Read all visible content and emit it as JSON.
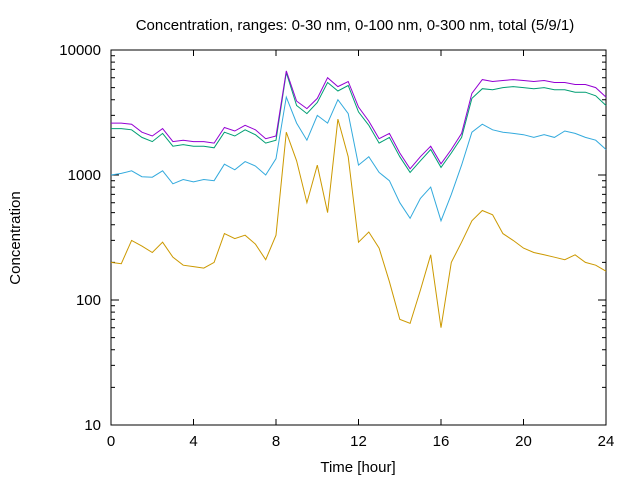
{
  "chart_data": {
    "type": "line",
    "title": "Concentration, ranges: 0-30 nm, 0-100 nm, 0-300 nm, total (5/9/1)",
    "xlabel": "Time [hour]",
    "ylabel": "Concentration",
    "xlim": [
      0,
      24
    ],
    "ylim": [
      10,
      10000
    ],
    "yscale": "log",
    "grid": false,
    "legend": "none",
    "x_ticks": [
      "0",
      "4",
      "8",
      "12",
      "16",
      "20",
      "24"
    ],
    "y_ticks": [
      "10",
      "100",
      "1000",
      "10000"
    ],
    "series": [
      {
        "color": "#cc9900",
        "points": [
          [
            0,
            200
          ],
          [
            0.5,
            195
          ],
          [
            1,
            300
          ],
          [
            1.5,
            270
          ],
          [
            2,
            240
          ],
          [
            2.5,
            290
          ],
          [
            3,
            220
          ],
          [
            3.5,
            190
          ],
          [
            4,
            185
          ],
          [
            4.5,
            180
          ],
          [
            5,
            200
          ],
          [
            5.5,
            340
          ],
          [
            6,
            310
          ],
          [
            6.5,
            330
          ],
          [
            7,
            280
          ],
          [
            7.5,
            210
          ],
          [
            8,
            330
          ],
          [
            8.5,
            2200
          ],
          [
            9,
            1300
          ],
          [
            9.5,
            600
          ],
          [
            10,
            1200
          ],
          [
            10.5,
            500
          ],
          [
            11,
            2800
          ],
          [
            11.5,
            1400
          ],
          [
            12,
            290
          ],
          [
            12.5,
            350
          ],
          [
            13,
            260
          ],
          [
            13.5,
            140
          ],
          [
            14,
            70
          ],
          [
            14.5,
            65
          ],
          [
            15,
            120
          ],
          [
            15.5,
            230
          ],
          [
            16,
            60
          ],
          [
            16.5,
            200
          ],
          [
            17,
            290
          ],
          [
            17.5,
            430
          ],
          [
            18,
            520
          ],
          [
            18.5,
            480
          ],
          [
            19,
            340
          ],
          [
            19.5,
            300
          ],
          [
            20,
            260
          ],
          [
            20.5,
            240
          ],
          [
            21,
            230
          ],
          [
            21.5,
            220
          ],
          [
            22,
            210
          ],
          [
            22.5,
            230
          ],
          [
            23,
            200
          ],
          [
            23.5,
            190
          ],
          [
            24,
            170
          ]
        ]
      },
      {
        "color": "#33aadd",
        "points": [
          [
            0,
            1000
          ],
          [
            0.5,
            1030
          ],
          [
            1,
            1080
          ],
          [
            1.5,
            970
          ],
          [
            2,
            960
          ],
          [
            2.5,
            1080
          ],
          [
            3,
            850
          ],
          [
            3.5,
            920
          ],
          [
            4,
            880
          ],
          [
            4.5,
            920
          ],
          [
            5,
            900
          ],
          [
            5.5,
            1220
          ],
          [
            6,
            1100
          ],
          [
            6.5,
            1280
          ],
          [
            7,
            1180
          ],
          [
            7.5,
            1000
          ],
          [
            8,
            1350
          ],
          [
            8.5,
            4200
          ],
          [
            9,
            2600
          ],
          [
            9.5,
            1900
          ],
          [
            10,
            3000
          ],
          [
            10.5,
            2600
          ],
          [
            11,
            4000
          ],
          [
            11.5,
            3100
          ],
          [
            12,
            1200
          ],
          [
            12.5,
            1400
          ],
          [
            13,
            1050
          ],
          [
            13.5,
            900
          ],
          [
            14,
            600
          ],
          [
            14.5,
            450
          ],
          [
            15,
            650
          ],
          [
            15.5,
            800
          ],
          [
            16,
            430
          ],
          [
            16.5,
            700
          ],
          [
            17,
            1200
          ],
          [
            17.5,
            2200
          ],
          [
            18,
            2550
          ],
          [
            18.5,
            2300
          ],
          [
            19,
            2200
          ],
          [
            19.5,
            2150
          ],
          [
            20,
            2100
          ],
          [
            20.5,
            2000
          ],
          [
            21,
            2100
          ],
          [
            21.5,
            2000
          ],
          [
            22,
            2250
          ],
          [
            22.5,
            2150
          ],
          [
            23,
            2000
          ],
          [
            23.5,
            1900
          ],
          [
            24,
            1600
          ]
        ]
      },
      {
        "color": "#009e73",
        "points": [
          [
            0,
            2350
          ],
          [
            0.5,
            2350
          ],
          [
            1,
            2300
          ],
          [
            1.5,
            2000
          ],
          [
            2,
            1850
          ],
          [
            2.5,
            2150
          ],
          [
            3,
            1700
          ],
          [
            3.5,
            1750
          ],
          [
            4,
            1700
          ],
          [
            4.5,
            1700
          ],
          [
            5,
            1650
          ],
          [
            5.5,
            2200
          ],
          [
            6,
            2050
          ],
          [
            6.5,
            2300
          ],
          [
            7,
            2100
          ],
          [
            7.5,
            1800
          ],
          [
            8,
            1900
          ],
          [
            8.5,
            6600
          ],
          [
            9,
            3600
          ],
          [
            9.5,
            3100
          ],
          [
            10,
            3800
          ],
          [
            10.5,
            5500
          ],
          [
            11,
            4700
          ],
          [
            11.5,
            5200
          ],
          [
            12,
            3200
          ],
          [
            12.5,
            2500
          ],
          [
            13,
            1800
          ],
          [
            13.5,
            2000
          ],
          [
            14,
            1400
          ],
          [
            14.5,
            1050
          ],
          [
            15,
            1300
          ],
          [
            15.5,
            1600
          ],
          [
            16,
            1150
          ],
          [
            16.5,
            1500
          ],
          [
            17,
            2000
          ],
          [
            17.5,
            4100
          ],
          [
            18,
            4900
          ],
          [
            18.5,
            4800
          ],
          [
            19,
            5000
          ],
          [
            19.5,
            5100
          ],
          [
            20,
            5000
          ],
          [
            20.5,
            4900
          ],
          [
            21,
            5000
          ],
          [
            21.5,
            4800
          ],
          [
            22,
            4800
          ],
          [
            22.5,
            4600
          ],
          [
            23,
            4600
          ],
          [
            23.5,
            4300
          ],
          [
            24,
            3600
          ]
        ]
      },
      {
        "color": "#9400d3",
        "points": [
          [
            0,
            2600
          ],
          [
            0.5,
            2600
          ],
          [
            1,
            2550
          ],
          [
            1.5,
            2200
          ],
          [
            2,
            2050
          ],
          [
            2.5,
            2350
          ],
          [
            3,
            1850
          ],
          [
            3.5,
            1900
          ],
          [
            4,
            1850
          ],
          [
            4.5,
            1850
          ],
          [
            5,
            1800
          ],
          [
            5.5,
            2400
          ],
          [
            6,
            2250
          ],
          [
            6.5,
            2500
          ],
          [
            7,
            2300
          ],
          [
            7.5,
            1950
          ],
          [
            8,
            2050
          ],
          [
            8.5,
            6800
          ],
          [
            9,
            3900
          ],
          [
            9.5,
            3400
          ],
          [
            10,
            4100
          ],
          [
            10.5,
            6000
          ],
          [
            11,
            5100
          ],
          [
            11.5,
            5600
          ],
          [
            12,
            3500
          ],
          [
            12.5,
            2700
          ],
          [
            13,
            1950
          ],
          [
            13.5,
            2150
          ],
          [
            14,
            1500
          ],
          [
            14.5,
            1120
          ],
          [
            15,
            1400
          ],
          [
            15.5,
            1700
          ],
          [
            16,
            1230
          ],
          [
            16.5,
            1600
          ],
          [
            17,
            2150
          ],
          [
            17.5,
            4500
          ],
          [
            18,
            5800
          ],
          [
            18.5,
            5600
          ],
          [
            19,
            5700
          ],
          [
            19.5,
            5800
          ],
          [
            20,
            5700
          ],
          [
            20.5,
            5600
          ],
          [
            21,
            5700
          ],
          [
            21.5,
            5500
          ],
          [
            22,
            5500
          ],
          [
            22.5,
            5300
          ],
          [
            23,
            5300
          ],
          [
            23.5,
            5000
          ],
          [
            24,
            4200
          ]
        ]
      }
    ]
  }
}
